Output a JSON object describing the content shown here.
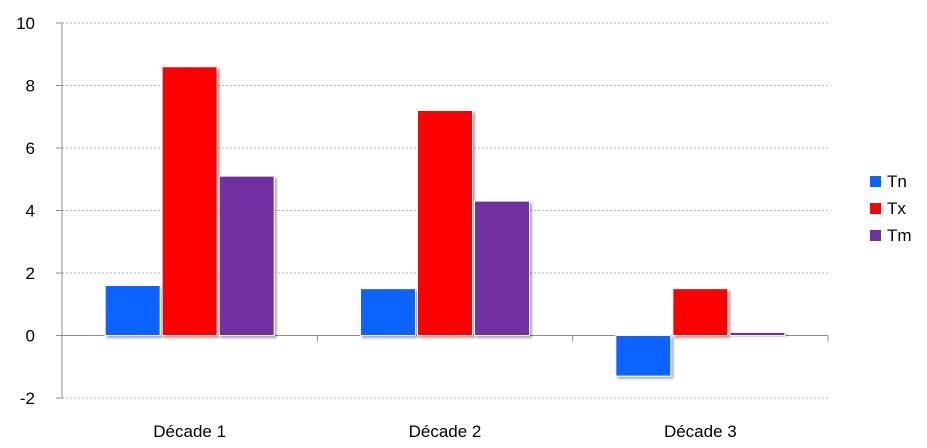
{
  "chart_data": {
    "type": "bar",
    "categories": [
      "Décade 1",
      "Décade 2",
      "Décade 3"
    ],
    "series": [
      {
        "name": "Tn",
        "color": "#0a63ff",
        "values": [
          1.6,
          1.5,
          -1.3
        ]
      },
      {
        "name": "Tx",
        "color": "#ff0000",
        "values": [
          8.6,
          7.2,
          1.5
        ]
      },
      {
        "name": "Tm",
        "color": "#7030a0",
        "values": [
          5.1,
          4.3,
          0.1
        ]
      }
    ],
    "ylim": [
      -2,
      10
    ],
    "yticks": [
      "-2",
      "0",
      "2",
      "4",
      "6",
      "8",
      "10"
    ],
    "grid": true,
    "legend_position": "right"
  }
}
